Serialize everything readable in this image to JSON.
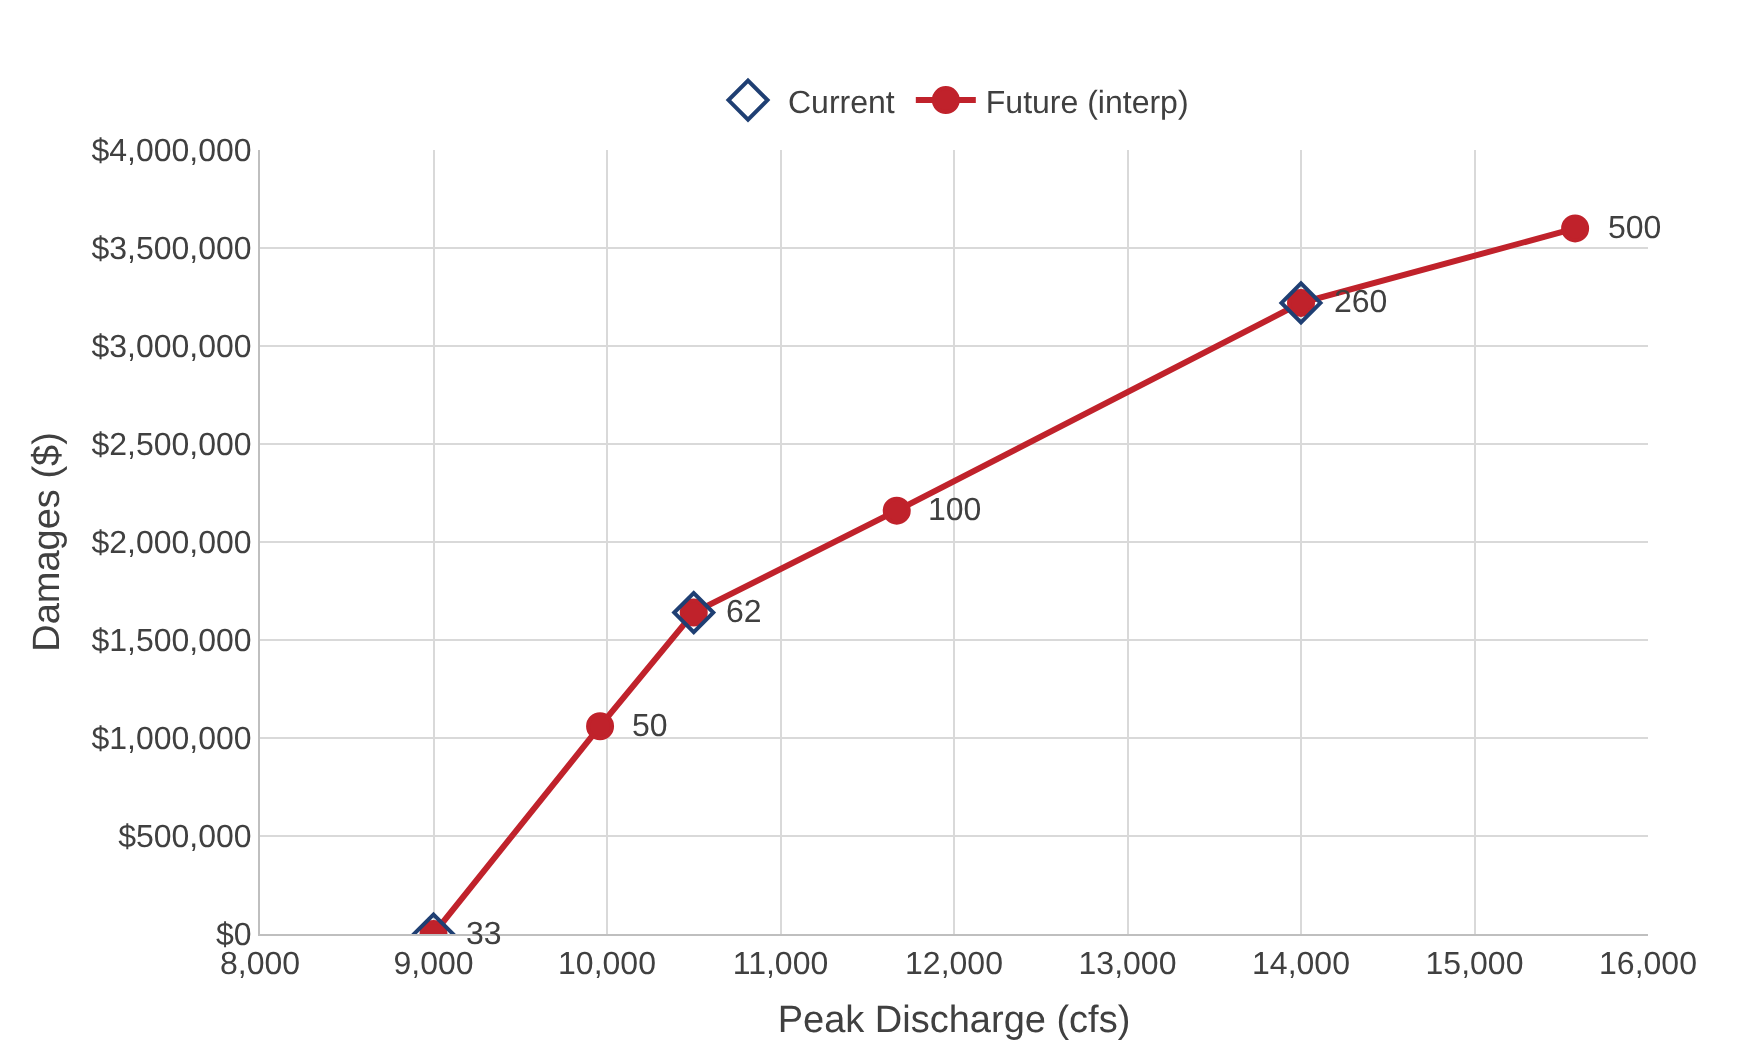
{
  "chart_data": {
    "type": "line",
    "xlabel": "Peak Discharge (cfs)",
    "ylabel": "Damages ($)",
    "xlim": [
      8000,
      16000
    ],
    "xticks": [
      {
        "value": 8000,
        "label": "8,000"
      },
      {
        "value": 9000,
        "label": "9,000"
      },
      {
        "value": 10000,
        "label": "10,000"
      },
      {
        "value": 11000,
        "label": "11,000"
      },
      {
        "value": 12000,
        "label": "12,000"
      },
      {
        "value": 13000,
        "label": "13,000"
      },
      {
        "value": 14000,
        "label": "14,000"
      },
      {
        "value": 15000,
        "label": "15,000"
      },
      {
        "value": 16000,
        "label": "16,000"
      }
    ],
    "ylim": [
      0,
      4000000
    ],
    "yticks": [
      {
        "value": 0,
        "label": "$0"
      },
      {
        "value": 500000,
        "label": "$500,000"
      },
      {
        "value": 1000000,
        "label": "$1,000,000"
      },
      {
        "value": 1500000,
        "label": "$1,500,000"
      },
      {
        "value": 2000000,
        "label": "$2,000,000"
      },
      {
        "value": 2500000,
        "label": "$2,500,000"
      },
      {
        "value": 3000000,
        "label": "$3,000,000"
      },
      {
        "value": 3500000,
        "label": "$3,500,000"
      },
      {
        "value": 4000000,
        "label": "$4,000,000"
      }
    ],
    "grid": true,
    "legend": "top",
    "series": [
      {
        "name": "Current",
        "type": "scatter",
        "marker": "diamond",
        "color": "#1f3f73",
        "x": [
          9000,
          10500,
          14000
        ],
        "values": [
          0,
          1640000,
          3220000
        ]
      },
      {
        "name": "Future (interp)",
        "marker": "circle",
        "line_style": "solid",
        "color": "#c0222b",
        "x": [
          9000,
          9960,
          10500,
          11670,
          14000,
          15580
        ],
        "values": [
          0,
          1060000,
          1640000,
          2160000,
          3220000,
          3600000
        ]
      }
    ],
    "annotations": [
      {
        "text": "33",
        "x": 9000,
        "y": 0
      },
      {
        "text": "50",
        "x": 9960,
        "y": 1060000
      },
      {
        "text": "62",
        "x": 10500,
        "y": 1640000
      },
      {
        "text": "100",
        "x": 11670,
        "y": 2160000
      },
      {
        "text": "260",
        "x": 14000,
        "y": 3220000
      },
      {
        "text": "500",
        "x": 15580,
        "y": 3600000
      }
    ]
  }
}
